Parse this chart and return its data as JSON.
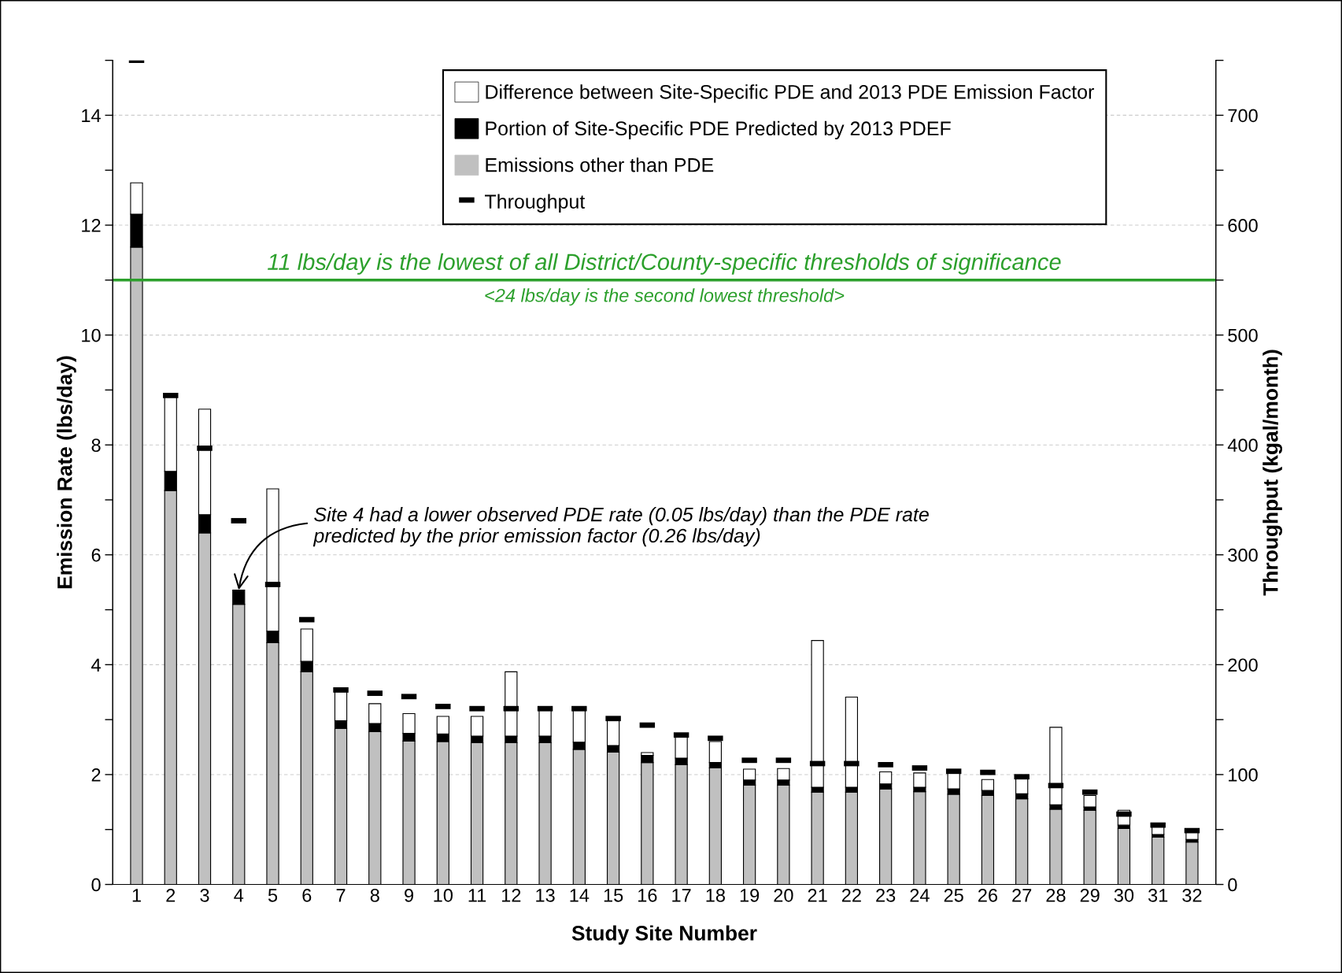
{
  "chart_data": {
    "type": "bar",
    "stacked": true,
    "xlabel": "Study Site Number",
    "ylabel": "Emission Rate (lbs/day)",
    "y2label": "Throughput (kgal/month)",
    "categories": [
      "1",
      "2",
      "3",
      "4",
      "5",
      "6",
      "7",
      "8",
      "9",
      "10",
      "11",
      "12",
      "13",
      "14",
      "15",
      "16",
      "17",
      "18",
      "19",
      "20",
      "21",
      "22",
      "23",
      "24",
      "25",
      "26",
      "27",
      "28",
      "29",
      "30",
      "31",
      "32"
    ],
    "series": [
      {
        "name": "Emissions other than PDE",
        "color": "#c0c0c0",
        "values": [
          11.6,
          7.17,
          6.4,
          5.1,
          4.4,
          3.87,
          2.84,
          2.78,
          2.61,
          2.6,
          2.58,
          2.58,
          2.58,
          2.46,
          2.41,
          2.22,
          2.18,
          2.12,
          1.81,
          1.81,
          1.68,
          1.68,
          1.74,
          1.69,
          1.64,
          1.62,
          1.56,
          1.37,
          1.35,
          1.02,
          0.86,
          0.77
        ]
      },
      {
        "name": "Portion of Site-Specific PDE Predicted by 2013 PDEF",
        "color": "#000000",
        "values": [
          0.6,
          0.35,
          0.33,
          0.26,
          0.21,
          0.19,
          0.14,
          0.15,
          0.14,
          0.14,
          0.12,
          0.12,
          0.12,
          0.13,
          0.12,
          0.13,
          0.12,
          0.1,
          0.09,
          0.09,
          0.09,
          0.09,
          0.09,
          0.08,
          0.1,
          0.09,
          0.09,
          0.08,
          0.06,
          0.06,
          0.05,
          0.05
        ]
      },
      {
        "name": "Difference between Site-Specific PDE and 2013 PDE Emission Factor",
        "color": "#ffffff",
        "values": [
          0.57,
          1.38,
          1.92,
          0,
          2.59,
          0.59,
          0.54,
          0.36,
          0.36,
          0.32,
          0.36,
          1.17,
          0.49,
          0.6,
          0.45,
          0.05,
          0.4,
          0.38,
          0.2,
          0.21,
          2.67,
          1.64,
          0.22,
          0.26,
          0.28,
          0.2,
          0.3,
          1.41,
          0.21,
          0.27,
          0.16,
          0.18
        ]
      },
      {
        "name": "Throughput",
        "type": "scatter",
        "axis": "y2",
        "color": "#000000",
        "values": [
          750,
          445,
          397,
          331,
          273,
          241,
          177,
          174,
          171,
          162,
          160,
          160,
          160,
          160,
          151,
          145,
          136,
          133,
          113,
          113,
          110,
          110,
          109,
          106,
          103,
          102,
          98,
          90,
          84,
          64,
          54,
          49
        ]
      }
    ],
    "ylim": [
      0,
      15
    ],
    "yticks": [
      0,
      {
        "value": 1,
        "label": null
      },
      2,
      {
        "value": 3,
        "label": null
      },
      4,
      {
        "value": 5,
        "label": null
      },
      6,
      {
        "value": 7,
        "label": null
      },
      8,
      {
        "value": 9,
        "label": null
      },
      10,
      {
        "value": 11,
        "label": null
      },
      12,
      {
        "value": 13,
        "label": null
      },
      14,
      {
        "value": 15,
        "label": null
      }
    ],
    "y2lim": [
      0,
      750
    ],
    "y2ticks": [
      0,
      {
        "value": 50,
        "label": null
      },
      100,
      {
        "value": 150,
        "label": null
      },
      200,
      {
        "value": 250,
        "label": null
      },
      300,
      {
        "value": 350,
        "label": null
      },
      400,
      {
        "value": 450,
        "label": null
      },
      500,
      {
        "value": 550,
        "label": null
      },
      600,
      {
        "value": 650,
        "label": null
      },
      700,
      {
        "value": 750,
        "label": null
      }
    ],
    "ref_lines": [
      {
        "axis": "y",
        "value": 11,
        "label": "11 lbs/day is the lowest of all District/County-specific thresholds of significance",
        "color": "#2ca02c"
      }
    ],
    "annotations": [
      "<24 lbs/day is the second lowest threshold>",
      {
        "text": "Site 4 had a lower observed PDE rate (0.05 lbs/day) than the PDE rate\npredicted by the prior emission factor (0.26 lbs/day)",
        "x": "4",
        "y": 5.36
      }
    ],
    "grid": "y",
    "legend": "top"
  }
}
